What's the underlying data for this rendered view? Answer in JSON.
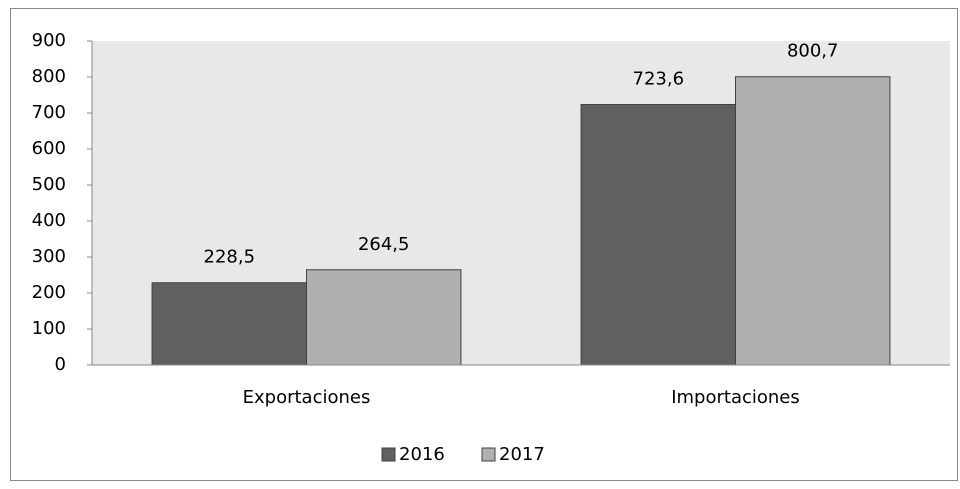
{
  "chart_data": {
    "type": "bar",
    "categories": [
      "Exportaciones",
      "Importaciones"
    ],
    "series": [
      {
        "name": "2016",
        "color": "#606060",
        "values": [
          228.5,
          723.6
        ],
        "value_labels": [
          "228,5",
          "723,6"
        ]
      },
      {
        "name": "2017",
        "color": "#b0b0b0",
        "values": [
          264.5,
          800.7
        ],
        "value_labels": [
          "264,5",
          "800,7"
        ]
      }
    ],
    "ylim": [
      0,
      900
    ],
    "yticks": [
      0,
      100,
      200,
      300,
      400,
      500,
      600,
      700,
      800,
      900
    ],
    "grid": false,
    "legend": "bottom"
  }
}
